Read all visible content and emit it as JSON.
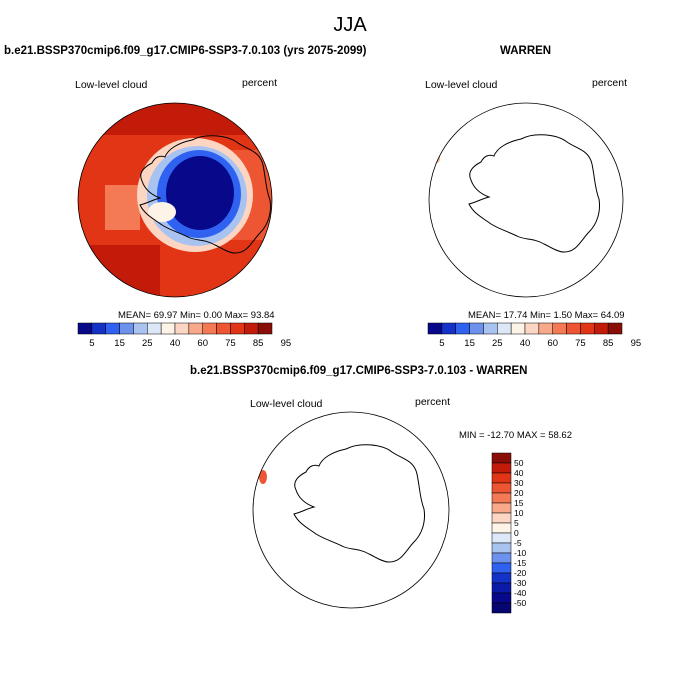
{
  "page_title": "JJA",
  "panels": {
    "model": {
      "title": "b.e21.BSSP370cmip6.f09_g17.CMIP6-SSP3-7.0.103 (yrs 2075-2099)",
      "variable": "Low-level cloud",
      "units": "percent",
      "stats": "MEAN=  69.97  Min=   0.00  Max=  93.84",
      "colorbar": {
        "labels": [
          "5",
          "15",
          "25",
          "40",
          "60",
          "75",
          "85",
          "95"
        ],
        "colors": [
          "#08088a",
          "#1432c8",
          "#2f62f0",
          "#6c92ee",
          "#a9c3f1",
          "#dce8f8",
          "#fdf3e6",
          "#fcd6c2",
          "#f9a98a",
          "#f47a55",
          "#ee5533",
          "#e23516",
          "#c21b0a",
          "#8a0e08"
        ]
      }
    },
    "obs": {
      "title": "WARREN",
      "variable": "Low-level cloud",
      "units": "percent",
      "stats": "MEAN=  17.74  Min=   1.50  Max=  64.09",
      "colorbar": {
        "labels": [
          "5",
          "15",
          "25",
          "40",
          "60",
          "75",
          "85",
          "95"
        ]
      }
    },
    "diff": {
      "title": "b.e21.BSSP370cmip6.f09_g17.CMIP6-SSP3-7.0.103 - WARREN",
      "variable": "Low-level cloud",
      "units": "percent",
      "stats": "MIN = -12.70 MAX =  58.62",
      "colorbar": {
        "labels": [
          "50",
          "40",
          "30",
          "20",
          "15",
          "10",
          "5",
          "0",
          "-5",
          "-10",
          "-15",
          "-20",
          "-30",
          "-40",
          "-50"
        ],
        "colors": [
          "#8a0e08",
          "#c21b0a",
          "#e23516",
          "#ee5533",
          "#f47a55",
          "#f9a98a",
          "#fcd6c2",
          "#fdf3e6",
          "#dce8f8",
          "#a9c3f1",
          "#6c92ee",
          "#2f62f0",
          "#1432c8",
          "#0c1aa8",
          "#08088a",
          "#060670"
        ]
      }
    }
  },
  "chart_data": [
    {
      "type": "heatmap",
      "title": "b.e21.BSSP370cmip6.f09_g17.CMIP6-SSP3-7.0.103 (yrs 2075-2099)",
      "variable": "Low-level cloud",
      "units": "percent",
      "projection": "south polar stereographic",
      "mean": 69.97,
      "min": 0.0,
      "max": 93.84,
      "colorbar_levels": [
        5,
        15,
        25,
        40,
        60,
        75,
        85,
        95
      ],
      "legend": "bottom"
    },
    {
      "type": "heatmap",
      "title": "WARREN",
      "variable": "Low-level cloud",
      "units": "percent",
      "projection": "south polar stereographic",
      "mean": 17.74,
      "min": 1.5,
      "max": 64.09,
      "colorbar_levels": [
        5,
        15,
        25,
        40,
        60,
        75,
        85,
        95
      ],
      "legend": "bottom"
    },
    {
      "type": "heatmap",
      "title": "b.e21.BSSP370cmip6.f09_g17.CMIP6-SSP3-7.0.103 - WARREN",
      "variable": "Low-level cloud",
      "units": "percent",
      "projection": "south polar stereographic",
      "min": -12.7,
      "max": 58.62,
      "colorbar_levels": [
        -50,
        -40,
        -30,
        -20,
        -15,
        -10,
        -5,
        0,
        5,
        10,
        15,
        20,
        30,
        40,
        50
      ],
      "legend": "right"
    }
  ]
}
